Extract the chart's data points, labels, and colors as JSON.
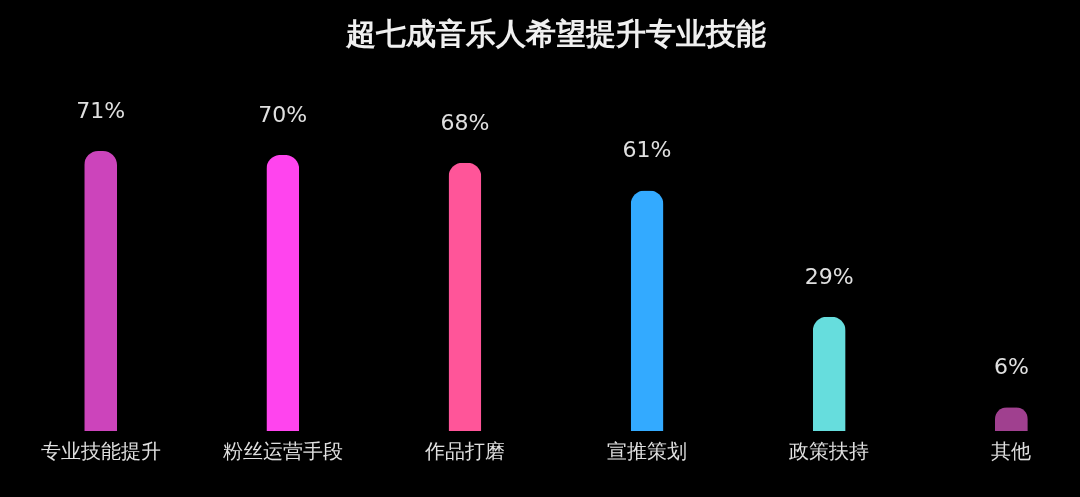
{
  "chart_data": {
    "type": "bar",
    "title": "超七成音乐人希望提升专业技能",
    "categories": [
      "专业技能提升",
      "粉丝运营手段",
      "作品打磨",
      "宣推策划",
      "政策扶持",
      "其他"
    ],
    "values": [
      71,
      70,
      68,
      61,
      29,
      6
    ],
    "value_labels": [
      "71%",
      "70%",
      "68%",
      "61%",
      "29%",
      "6%"
    ],
    "colors": [
      "#cc44bb",
      "#ff44ee",
      "#ff5599",
      "#33aaff",
      "#66dddd",
      "#a0408f"
    ],
    "grid": false,
    "legend": false
  }
}
